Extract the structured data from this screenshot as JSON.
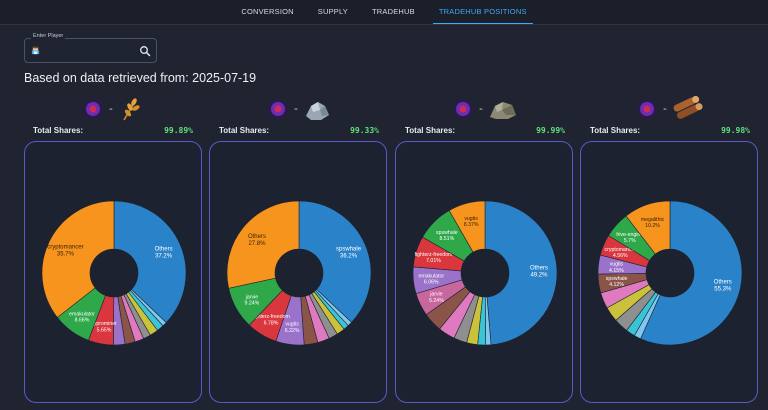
{
  "nav": {
    "tabs": [
      {
        "label": "CONVERSION",
        "active": false
      },
      {
        "label": "SUPPLY",
        "active": false
      },
      {
        "label": "TRADEHUB",
        "active": false
      },
      {
        "label": "TRADEHUB POSITIONS",
        "active": true
      }
    ]
  },
  "player": {
    "label": "Enter Player",
    "value": "",
    "search_icon": "magnifier-icon",
    "avatar_icon": "player-avatar-icon"
  },
  "heading": "Based on data retrieved from: 2025-07-19",
  "colors": {
    "accent": "#3fa9f5",
    "card_border": "#5b59c9",
    "shares_value": "#5fe07a"
  },
  "cards": [
    {
      "pair_left_icon": "dark-energy-crystal-icon",
      "pair_sep": "-",
      "pair_right_icon": "grain-icon",
      "shares_label": "Total Shares:",
      "shares_value": "99.89%"
    },
    {
      "pair_left_icon": "dark-energy-crystal-icon",
      "pair_sep": "-",
      "pair_right_icon": "iron-ore-icon",
      "shares_label": "Total Shares:",
      "shares_value": "99.33%"
    },
    {
      "pair_left_icon": "dark-energy-crystal-icon",
      "pair_sep": "-",
      "pair_right_icon": "stone-icon",
      "shares_label": "Total Shares:",
      "shares_value": "99.99%"
    },
    {
      "pair_left_icon": "dark-energy-crystal-icon",
      "pair_sep": "-",
      "pair_right_icon": "wood-logs-icon",
      "shares_label": "Total Shares:",
      "shares_value": "99.98%"
    }
  ],
  "chart_data": [
    {
      "type": "pie",
      "slices": [
        {
          "label": "Others",
          "value": 37.2,
          "color": "#2a83c9"
        },
        {
          "label": "",
          "value": 1.0,
          "color": "#7fc7ef"
        },
        {
          "label": "",
          "value": 1.6,
          "color": "#39c5d6"
        },
        {
          "label": "",
          "value": 1.9,
          "color": "#c9c23a"
        },
        {
          "label": "",
          "value": 1.7,
          "color": "#8f8f8f"
        },
        {
          "label": "",
          "value": 2.0,
          "color": "#e07ac0"
        },
        {
          "label": "",
          "value": 2.3,
          "color": "#8a5548"
        },
        {
          "label": "",
          "value": 2.6,
          "color": "#9a72c9"
        },
        {
          "label": "cyprominer",
          "value": 5.65,
          "color": "#d9363e"
        },
        {
          "label": "emakulator",
          "value": 8.66,
          "color": "#2fa84a"
        },
        {
          "label": "cryptomancer",
          "value": 35.7,
          "color": "#f7941d"
        }
      ]
    },
    {
      "type": "pie",
      "slices": [
        {
          "label": "spswhale",
          "value": 36.2,
          "color": "#2a83c9"
        },
        {
          "label": "",
          "value": 1.0,
          "color": "#7fc7ef"
        },
        {
          "label": "",
          "value": 1.2,
          "color": "#39c5d6"
        },
        {
          "label": "",
          "value": 1.8,
          "color": "#c9c23a"
        },
        {
          "label": "",
          "value": 2.0,
          "color": "#8f8f8f"
        },
        {
          "label": "",
          "value": 2.6,
          "color": "#e07ac0"
        },
        {
          "label": "",
          "value": 3.0,
          "color": "#8a5548"
        },
        {
          "label": "vugtis",
          "value": 6.22,
          "color": "#9a72c9"
        },
        {
          "label": "fighterz-freedom",
          "value": 6.78,
          "color": "#d9363e"
        },
        {
          "label": "jarvie",
          "value": 9.24,
          "color": "#2fa84a"
        },
        {
          "label": "Others",
          "value": 27.8,
          "color": "#f7941d"
        }
      ]
    },
    {
      "type": "pie",
      "slices": [
        {
          "label": "Others",
          "value": 49.2,
          "color": "#2a83c9"
        },
        {
          "label": "",
          "value": 1.2,
          "color": "#7fc7ef"
        },
        {
          "label": "",
          "value": 1.8,
          "color": "#39c5d6"
        },
        {
          "label": "",
          "value": 2.5,
          "color": "#c9c23a"
        },
        {
          "label": "",
          "value": 3.0,
          "color": "#8f8f8f"
        },
        {
          "label": "",
          "value": 3.8,
          "color": "#e07ac0"
        },
        {
          "label": "",
          "value": 4.4,
          "color": "#8a5548"
        },
        {
          "label": "jarvie",
          "value": 5.24,
          "color": "#c8669e"
        },
        {
          "label": "emakulator",
          "value": 6.06,
          "color": "#9a72c9"
        },
        {
          "label": "fighterz-freedom",
          "value": 7.01,
          "color": "#d9363e"
        },
        {
          "label": "spswhale",
          "value": 8.51,
          "color": "#2fa84a"
        },
        {
          "label": "vugtis",
          "value": 8.37,
          "color": "#f7941d"
        }
      ]
    },
    {
      "type": "pie",
      "slices": [
        {
          "label": "Others",
          "value": 55.3,
          "color": "#2a83c9"
        },
        {
          "label": "",
          "value": 1.5,
          "color": "#7fc7ef"
        },
        {
          "label": "",
          "value": 2.0,
          "color": "#39c5d6"
        },
        {
          "label": "",
          "value": 3.2,
          "color": "#8f8f8f"
        },
        {
          "label": "",
          "value": 3.3,
          "color": "#c9c23a"
        },
        {
          "label": "",
          "value": 3.5,
          "color": "#e07ac0"
        },
        {
          "label": "spswhale",
          "value": 4.12,
          "color": "#8a5548"
        },
        {
          "label": "vugtis",
          "value": 4.15,
          "color": "#9a72c9"
        },
        {
          "label": "cryptomancer",
          "value": 4.56,
          "color": "#d9363e"
        },
        {
          "label": "hive-engine",
          "value": 5.7,
          "color": "#2fa84a"
        },
        {
          "label": "megalithic",
          "value": 10.2,
          "color": "#f7941d"
        }
      ]
    }
  ]
}
